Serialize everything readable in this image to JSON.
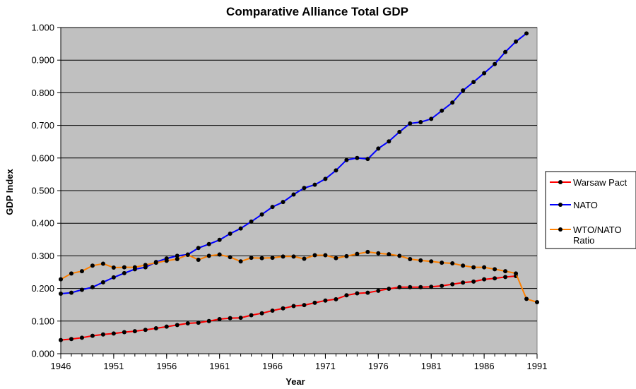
{
  "chart_data": {
    "type": "line",
    "title": "Comparative Alliance Total GDP",
    "xlabel": "Year",
    "ylabel": "GDP Index",
    "xlim": [
      1946,
      1991
    ],
    "ylim": [
      0,
      1
    ],
    "x_ticks": [
      "1946",
      "1951",
      "1956",
      "1961",
      "1966",
      "1971",
      "1976",
      "1981",
      "1986",
      "1991"
    ],
    "y_ticks": [
      "0.000",
      "0.100",
      "0.200",
      "0.300",
      "0.400",
      "0.500",
      "0.600",
      "0.700",
      "0.800",
      "0.900",
      "1.000"
    ],
    "grid": true,
    "plot_background": "#c0c0c0",
    "legend_position": "right",
    "series": [
      {
        "name": "Warsaw Pact",
        "color": "#ff0000",
        "x": [
          1946,
          1947,
          1948,
          1949,
          1950,
          1951,
          1952,
          1953,
          1954,
          1955,
          1956,
          1957,
          1958,
          1959,
          1960,
          1961,
          1962,
          1963,
          1964,
          1965,
          1966,
          1967,
          1968,
          1969,
          1970,
          1971,
          1972,
          1973,
          1974,
          1975,
          1976,
          1977,
          1978,
          1979,
          1980,
          1981,
          1982,
          1983,
          1984,
          1985,
          1986,
          1987,
          1988,
          1989
        ],
        "values": [
          0.042,
          0.045,
          0.049,
          0.055,
          0.059,
          0.062,
          0.066,
          0.069,
          0.073,
          0.078,
          0.083,
          0.088,
          0.093,
          0.095,
          0.1,
          0.106,
          0.109,
          0.11,
          0.118,
          0.124,
          0.132,
          0.139,
          0.146,
          0.149,
          0.156,
          0.163,
          0.167,
          0.179,
          0.185,
          0.187,
          0.193,
          0.199,
          0.204,
          0.204,
          0.204,
          0.205,
          0.208,
          0.213,
          0.218,
          0.221,
          0.228,
          0.231,
          0.235,
          0.238
        ]
      },
      {
        "name": "NATO",
        "color": "#0000ff",
        "x": [
          1946,
          1947,
          1948,
          1949,
          1950,
          1951,
          1952,
          1953,
          1954,
          1955,
          1956,
          1957,
          1958,
          1959,
          1960,
          1961,
          1962,
          1963,
          1964,
          1965,
          1966,
          1967,
          1968,
          1969,
          1970,
          1971,
          1972,
          1973,
          1974,
          1975,
          1976,
          1977,
          1978,
          1979,
          1980,
          1981,
          1982,
          1983,
          1984,
          1985,
          1986,
          1987,
          1988,
          1989,
          1990
        ],
        "values": [
          0.184,
          0.187,
          0.196,
          0.204,
          0.219,
          0.234,
          0.247,
          0.259,
          0.265,
          0.281,
          0.292,
          0.3,
          0.304,
          0.324,
          0.336,
          0.349,
          0.368,
          0.384,
          0.405,
          0.427,
          0.45,
          0.465,
          0.488,
          0.508,
          0.518,
          0.536,
          0.562,
          0.594,
          0.6,
          0.597,
          0.629,
          0.651,
          0.68,
          0.706,
          0.71,
          0.72,
          0.745,
          0.77,
          0.807,
          0.833,
          0.86,
          0.888,
          0.925,
          0.957,
          0.982
        ]
      },
      {
        "name": "WTO/NATO Ratio",
        "color": "#ff8000",
        "x": [
          1946,
          1947,
          1948,
          1949,
          1950,
          1951,
          1952,
          1953,
          1954,
          1955,
          1956,
          1957,
          1958,
          1959,
          1960,
          1961,
          1962,
          1963,
          1964,
          1965,
          1966,
          1967,
          1968,
          1969,
          1970,
          1971,
          1972,
          1973,
          1974,
          1975,
          1976,
          1977,
          1978,
          1979,
          1980,
          1981,
          1982,
          1983,
          1984,
          1985,
          1986,
          1987,
          1988,
          1989,
          1990,
          1991
        ],
        "values": [
          0.228,
          0.246,
          0.253,
          0.27,
          0.276,
          0.264,
          0.265,
          0.265,
          0.272,
          0.279,
          0.285,
          0.29,
          0.303,
          0.288,
          0.3,
          0.304,
          0.296,
          0.283,
          0.294,
          0.293,
          0.294,
          0.298,
          0.298,
          0.291,
          0.302,
          0.302,
          0.293,
          0.299,
          0.306,
          0.312,
          0.308,
          0.305,
          0.3,
          0.29,
          0.286,
          0.283,
          0.279,
          0.277,
          0.27,
          0.265,
          0.265,
          0.259,
          0.253,
          0.246,
          0.168,
          0.158
        ]
      }
    ]
  },
  "legend": {
    "items": [
      {
        "label_lines": [
          "Warsaw Pact"
        ],
        "color": "#ff0000"
      },
      {
        "label_lines": [
          "NATO"
        ],
        "color": "#0000ff"
      },
      {
        "label_lines": [
          "WTO/NATO",
          "Ratio"
        ],
        "color": "#ff8000"
      }
    ]
  }
}
